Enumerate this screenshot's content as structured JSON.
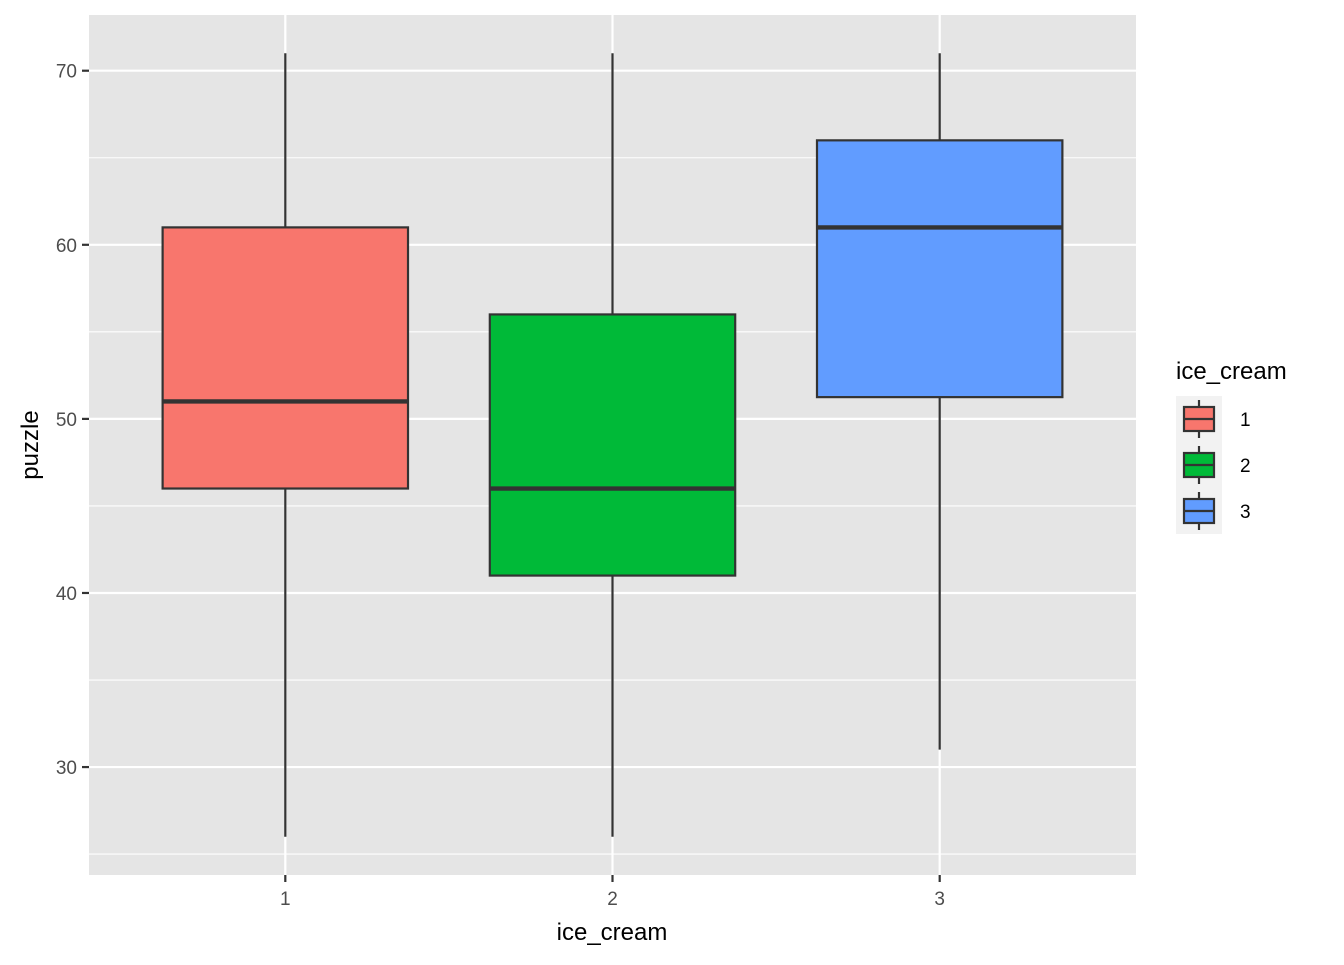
{
  "chart_data": {
    "type": "boxplot",
    "title": "",
    "xlabel": "ice_cream",
    "ylabel": "puzzle",
    "categories": [
      "1",
      "2",
      "3"
    ],
    "boxes": [
      {
        "category": "1",
        "min": 26,
        "q1": 46,
        "median": 51,
        "q3": 61,
        "max": 71,
        "color": "#F8766D"
      },
      {
        "category": "2",
        "min": 26,
        "q1": 41,
        "median": 46,
        "q3": 56,
        "max": 71,
        "color": "#00BA38"
      },
      {
        "category": "3",
        "min": 31,
        "q1": 51.25,
        "median": 61,
        "q3": 66,
        "max": 71,
        "color": "#619CFF"
      }
    ],
    "ylim": [
      23.8,
      73.2
    ],
    "y_ticks": [
      30,
      40,
      50,
      60,
      70
    ],
    "y_minor_ticks": [
      25,
      35,
      45,
      55,
      65
    ],
    "grid": true,
    "panel_background": "#E5E5E5",
    "legend": {
      "title": "ice_cream",
      "placement": "right",
      "items": [
        "1",
        "2",
        "3"
      ]
    }
  }
}
